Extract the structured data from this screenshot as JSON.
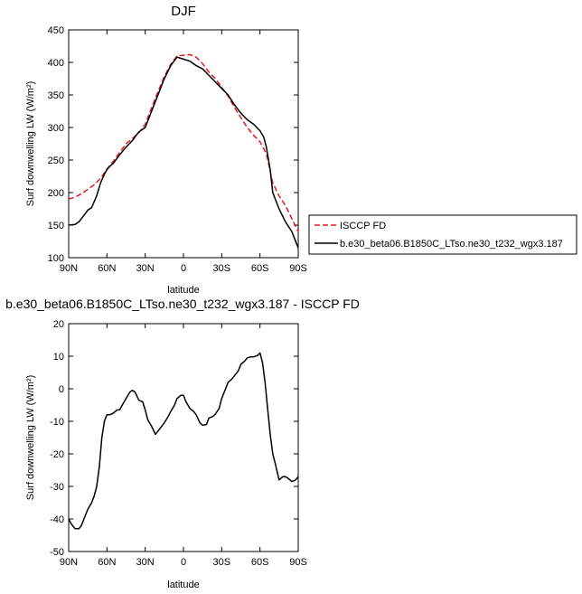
{
  "chart_data": [
    {
      "type": "line",
      "title": "DJF",
      "xlabel": "latitude",
      "ylabel": "Surf downwelling LW (W/m²)",
      "xlim": [
        90,
        -90
      ],
      "ylim": [
        100,
        450
      ],
      "yticks": [
        100,
        150,
        200,
        250,
        300,
        350,
        400,
        450
      ],
      "xticks": [
        90,
        60,
        30,
        0,
        -30,
        -60,
        -90
      ],
      "xtick_labels": [
        "90N",
        "60N",
        "30N",
        "0",
        "30S",
        "60S",
        "90S"
      ],
      "legend_position": "right",
      "series": [
        {
          "name": "ISCCP FD",
          "color": "#e41a1c",
          "dash": "dashed",
          "x": [
            90,
            85,
            80,
            75,
            70,
            65,
            60,
            55,
            50,
            45,
            40,
            35,
            30,
            25,
            20,
            15,
            10,
            5,
            0,
            -5,
            -10,
            -15,
            -20,
            -25,
            -30,
            -35,
            -40,
            -45,
            -50,
            -55,
            -60,
            -65,
            -70,
            -75,
            -80,
            -85,
            -90
          ],
          "y": [
            190,
            193,
            198,
            205,
            212,
            222,
            236,
            248,
            262,
            275,
            283,
            292,
            305,
            330,
            355,
            378,
            397,
            410,
            411,
            412,
            408,
            398,
            385,
            375,
            362,
            348,
            331,
            315,
            300,
            288,
            278,
            260,
            215,
            195,
            180,
            160,
            140
          ]
        },
        {
          "name": "b.e30_beta06.B1850C_LTso.ne30_t232_wgx3.187",
          "color": "#000000",
          "dash": "solid",
          "x": [
            90,
            85,
            82,
            78,
            75,
            72,
            68,
            65,
            62,
            60,
            58,
            55,
            50,
            45,
            40,
            37,
            35,
            30,
            28,
            25,
            20,
            15,
            10,
            5,
            0,
            -5,
            -10,
            -15,
            -20,
            -25,
            -30,
            -35,
            -40,
            -45,
            -50,
            -55,
            -60,
            -63,
            -65,
            -68,
            -70,
            -75,
            -80,
            -85,
            -90
          ],
          "y": [
            150,
            151,
            155,
            165,
            173,
            177,
            195,
            215,
            228,
            235,
            240,
            245,
            258,
            270,
            280,
            288,
            293,
            300,
            310,
            325,
            350,
            375,
            395,
            408,
            405,
            402,
            395,
            390,
            380,
            370,
            360,
            350,
            335,
            322,
            312,
            305,
            295,
            285,
            270,
            235,
            200,
            175,
            155,
            140,
            115
          ]
        }
      ]
    },
    {
      "type": "line",
      "title": "b.e30_beta06.B1850C_LTso.ne30_t232_wgx3.187 - ISCCP FD",
      "xlabel": "latitude",
      "ylabel": "Surf downwelling LW (W/m²)",
      "xlim": [
        90,
        -90
      ],
      "ylim": [
        -50,
        20
      ],
      "yticks": [
        -50,
        -40,
        -30,
        -20,
        -10,
        0,
        10,
        20
      ],
      "xticks": [
        90,
        60,
        30,
        0,
        -30,
        -60,
        -90
      ],
      "xtick_labels": [
        "90N",
        "60N",
        "30N",
        "0",
        "30S",
        "60S",
        "90S"
      ],
      "series": [
        {
          "color": "#000000",
          "dash": "solid",
          "x": [
            90,
            88,
            85,
            82,
            80,
            78,
            75,
            72,
            70,
            68,
            66,
            64,
            62,
            60,
            58,
            55,
            52,
            50,
            48,
            45,
            42,
            40,
            38,
            35,
            32,
            30,
            28,
            25,
            22,
            20,
            18,
            15,
            12,
            10,
            7,
            5,
            2,
            0,
            -2,
            -5,
            -8,
            -10,
            -13,
            -15,
            -18,
            -20,
            -23,
            -25,
            -28,
            -30,
            -33,
            -35,
            -38,
            -40,
            -43,
            -45,
            -48,
            -50,
            -53,
            -55,
            -58,
            -60,
            -62,
            -64,
            -66,
            -68,
            -70,
            -72,
            -75,
            -78,
            -80,
            -82,
            -85,
            -88,
            -90
          ],
          "y": [
            -40,
            -41.5,
            -43,
            -43,
            -42,
            -40,
            -37,
            -35,
            -33,
            -30,
            -24,
            -15,
            -10,
            -8,
            -8,
            -7.5,
            -6.5,
            -6.5,
            -5,
            -3,
            -1,
            -0.5,
            -1,
            -3.5,
            -4,
            -6.5,
            -9.5,
            -11.5,
            -14,
            -13,
            -12,
            -10.5,
            -8.5,
            -7,
            -5,
            -3,
            -2,
            -2,
            -4,
            -6,
            -7,
            -8,
            -10.5,
            -11.2,
            -11,
            -9,
            -8.5,
            -7.8,
            -6,
            -3,
            0,
            2,
            3,
            4,
            5.5,
            7.5,
            8.5,
            9.5,
            9.8,
            9.8,
            10.2,
            11,
            8,
            2,
            -6,
            -14,
            -20,
            -23,
            -28,
            -27,
            -27,
            -27.5,
            -28.5,
            -28,
            -27
          ]
        }
      ]
    }
  ]
}
